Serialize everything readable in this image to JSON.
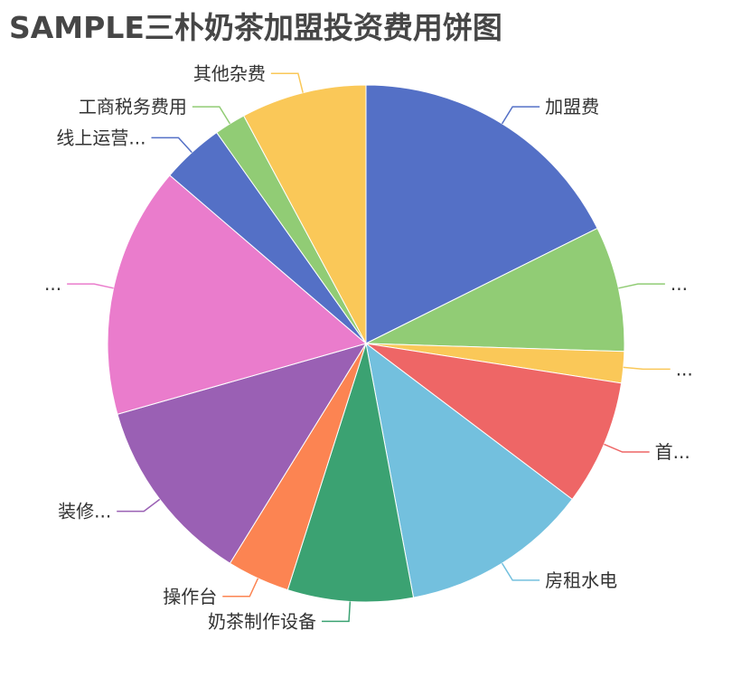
{
  "title": "SAMPLE三朴奶茶加盟投资费用饼图",
  "chart_data": {
    "type": "pie",
    "title": "SAMPLE三朴奶茶加盟投资费用饼图",
    "start_angle_deg": 90,
    "direction": "clockwise",
    "slices": [
      {
        "label": "加盟费",
        "value": 18,
        "color": "#5470c6"
      },
      {
        "label": "...",
        "value": 8,
        "color": "#91cc75"
      },
      {
        "label": "...",
        "value": 2,
        "color": "#fac858"
      },
      {
        "label": "首...",
        "value": 8,
        "color": "#ee6666"
      },
      {
        "label": "房租水电",
        "value": 12,
        "color": "#73c0de"
      },
      {
        "label": "奶茶制作设备",
        "value": 8,
        "color": "#3ba272"
      },
      {
        "label": "操作台",
        "value": 4,
        "color": "#fc8452"
      },
      {
        "label": "装修...",
        "value": 12,
        "color": "#9a60b4"
      },
      {
        "label": "...",
        "value": 16,
        "color": "#ea7ccc"
      },
      {
        "label": "线上运营...",
        "value": 4,
        "color": "#5470c6"
      },
      {
        "label": "工商税务费用",
        "value": 2,
        "color": "#91cc75"
      },
      {
        "label": "其他杂费",
        "value": 8,
        "color": "#fac858"
      }
    ]
  }
}
